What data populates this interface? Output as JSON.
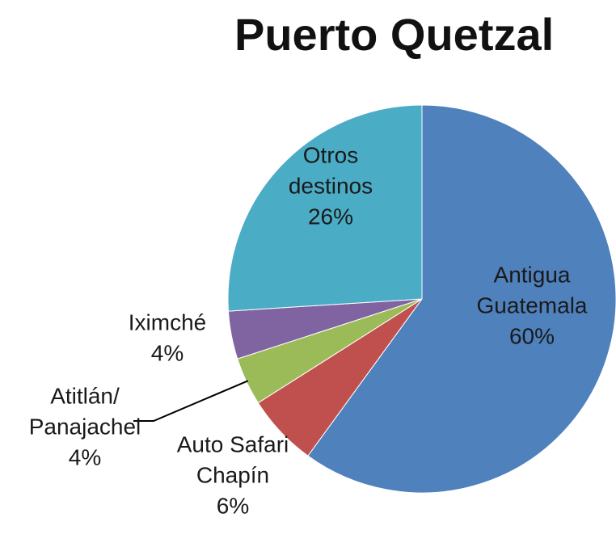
{
  "chart_data": {
    "type": "pie",
    "title": "Puerto Quetzal",
    "slices": [
      {
        "label_lines": [
          "Antigua",
          "Guatemala"
        ],
        "value": 60,
        "value_label": "60%",
        "color": "#4f81bd"
      },
      {
        "label_lines": [
          "Auto Safari",
          "Chapín"
        ],
        "value": 6,
        "value_label": "6%",
        "color": "#c0504d"
      },
      {
        "label_lines": [
          "Atitlán/",
          "Panajachel"
        ],
        "value": 4,
        "value_label": "4%",
        "color": "#9bbb59"
      },
      {
        "label_lines": [
          "Iximché"
        ],
        "value": 4,
        "value_label": "4%",
        "color": "#8064a2"
      },
      {
        "label_lines": [
          "Otros",
          "destinos"
        ],
        "value": 26,
        "value_label": "26%",
        "color": "#4bacc6"
      }
    ],
    "legend": "none"
  }
}
